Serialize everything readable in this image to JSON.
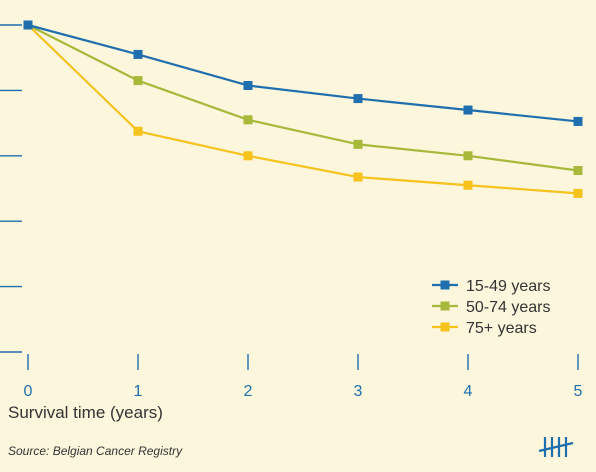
{
  "chart_data": {
    "type": "line",
    "title": "",
    "xlabel": "Survival time (years)",
    "ylabel": "",
    "x": [
      0,
      1,
      2,
      3,
      4,
      5
    ],
    "xlim": [
      0,
      5
    ],
    "ylim": [
      0,
      100
    ],
    "y_ticks": [
      0,
      20,
      40,
      60,
      80,
      100
    ],
    "grid": false,
    "legend_position": "bottom-right",
    "series": [
      {
        "name": "15-49 years",
        "color": "#1f6fae",
        "values": [
          100,
          91,
          81.5,
          77.5,
          74,
          70.5
        ]
      },
      {
        "name": "50-74 years",
        "color": "#a8b83a",
        "values": [
          100,
          83,
          71,
          63.5,
          60,
          55.5
        ]
      },
      {
        "name": "75+ years",
        "color": "#f6c21c",
        "values": [
          100,
          67.5,
          60,
          53.5,
          51,
          48.5
        ]
      }
    ]
  },
  "x_axis": {
    "title": "Survival time (years)",
    "tick_labels": [
      "0",
      "1",
      "2",
      "3",
      "4",
      "5"
    ],
    "tick_color": "#1f6fae"
  },
  "source": "Source: Belgian Cancer Registry",
  "logo": {
    "icon": "tally-marks-logo",
    "color": "#1f6fae"
  }
}
